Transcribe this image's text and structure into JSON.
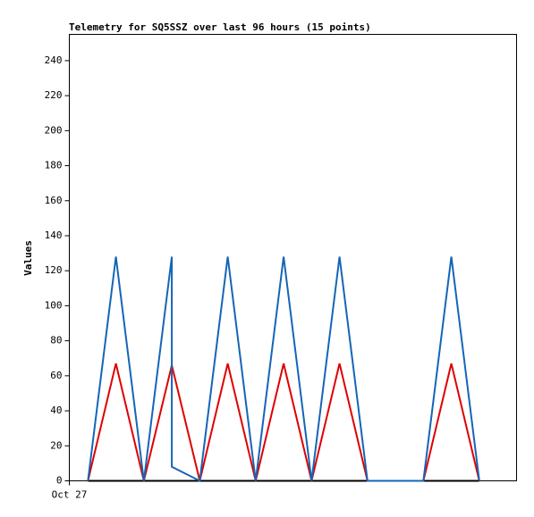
{
  "chart_data": {
    "type": "line",
    "title": "Telemetry for SQ5SSZ over last 96 hours (15 points)",
    "y_label": "Values",
    "x": [
      4,
      10,
      16,
      22,
      22,
      28,
      34,
      40,
      46,
      52,
      58,
      64,
      76,
      82,
      88
    ],
    "xlim": [
      0,
      96
    ],
    "xticks": [
      {
        "value": 0,
        "label": "Oct 27"
      }
    ],
    "ylim": [
      0,
      255
    ],
    "yticks": [
      0,
      20,
      40,
      60,
      80,
      100,
      120,
      140,
      160,
      180,
      200,
      220,
      240
    ],
    "series": [
      {
        "color": "#1565b8",
        "values": [
          0,
          128,
          0,
          128,
          8,
          0,
          128,
          0,
          128,
          0,
          128,
          0,
          0,
          128,
          0
        ]
      },
      {
        "color": "#e00000",
        "values": [
          0,
          67,
          0,
          66,
          66,
          0,
          67,
          0,
          67,
          0,
          67,
          0,
          0,
          67,
          0
        ]
      },
      {
        "color": "#000000",
        "values": [
          0,
          0,
          0,
          0,
          0,
          0,
          0,
          0,
          0,
          0,
          0,
          0,
          0,
          0,
          0
        ]
      }
    ]
  }
}
